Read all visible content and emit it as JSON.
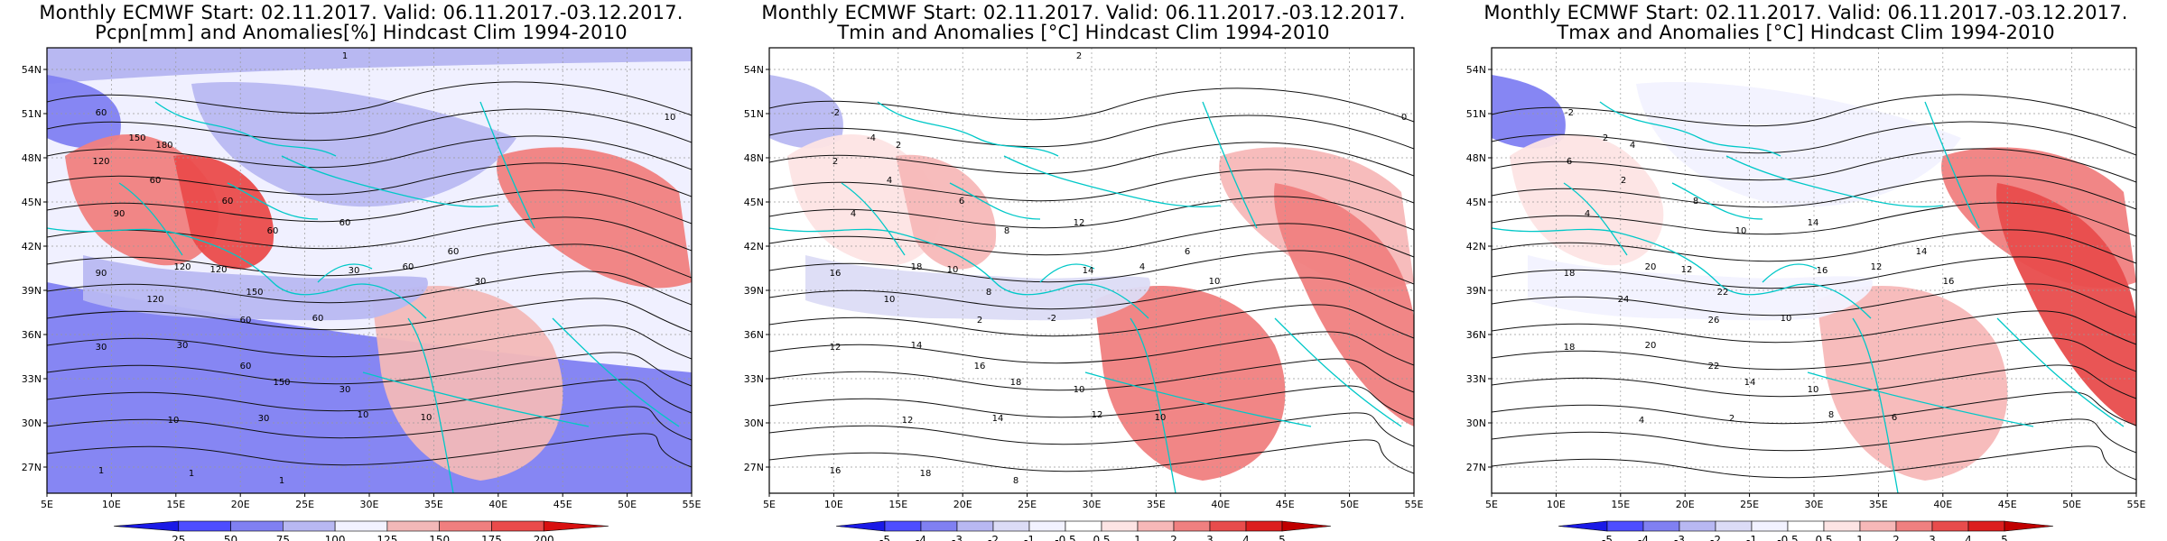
{
  "panels": [
    {
      "title1": "Monthly ECMWF Start: 02.11.2017. Valid: 06.11.2017.-03.12.2017.",
      "title2": "Pcpn[mm] and Anomalies[%] Hindcast Clim 1994-2010",
      "colorbar": {
        "labels": [
          "25",
          "50",
          "75",
          "100",
          "125",
          "150",
          "175",
          "200"
        ],
        "colors": [
          "#1a1ae6",
          "#4d4dff",
          "#8080f2",
          "#b8b8f2",
          "#f2f2ff",
          "#f2b8b8",
          "#f07f7f",
          "#ea4b4b",
          "#d81010"
        ]
      },
      "contour_labels": [
        "60",
        "150",
        "180",
        "120",
        "90",
        "60",
        "60",
        "60",
        "120",
        "60",
        "30",
        "90",
        "120",
        "150",
        "120",
        "60",
        "60",
        "60",
        "60",
        "30",
        "30",
        "30",
        "60",
        "150",
        "30",
        "10",
        "10",
        "10",
        "30",
        "1",
        "1",
        "1",
        "1",
        "10"
      ]
    },
    {
      "title1": "Monthly ECMWF Start: 02.11.2017. Valid: 06.11.2017.-03.12.2017.",
      "title2": "Tmin and Anomalies [°C] Hindcast Clim 1994-2010",
      "colorbar": {
        "labels": [
          "-5",
          "-4",
          "-3",
          "-2",
          "-1",
          "-0.5",
          "0.5",
          "1",
          "2",
          "3",
          "4",
          "5"
        ],
        "colors": [
          "#1a1ae6",
          "#4d4dff",
          "#8080f2",
          "#b8b8f2",
          "#dcdcf6",
          "#f2f2ff",
          "#ffffff",
          "#fde4e4",
          "#f7b8b8",
          "#f08080",
          "#e84c4c",
          "#dc1e1e",
          "#c00000"
        ]
      },
      "contour_labels": [
        "-2",
        "-4",
        "2",
        "2",
        "4",
        "4",
        "6",
        "8",
        "10",
        "12",
        "14",
        "16",
        "18",
        "8",
        "10",
        "2",
        "-2",
        "4",
        "6",
        "10",
        "12",
        "14",
        "16",
        "18",
        "10",
        "12",
        "10",
        "12",
        "14",
        "16",
        "18",
        "8",
        "2",
        "0"
      ]
    },
    {
      "title1": "Monthly ECMWF Start: 02.11.2017. Valid: 06.11.2017.-03.12.2017.",
      "title2": "Tmax and Anomalies [°C] Hindcast Clim 1994-2010",
      "colorbar": {
        "labels": [
          "-5",
          "-4",
          "-3",
          "-2",
          "-1",
          "-0.5",
          "0.5",
          "1",
          "2",
          "3",
          "4",
          "5"
        ],
        "colors": [
          "#1a1ae6",
          "#4d4dff",
          "#8080f2",
          "#b8b8f2",
          "#dcdcf6",
          "#f2f2ff",
          "#ffffff",
          "#fde4e4",
          "#f7b8b8",
          "#f08080",
          "#e84c4c",
          "#dc1e1e",
          "#c00000"
        ]
      },
      "contour_labels": [
        "-2",
        "2",
        "4",
        "6",
        "4",
        "2",
        "8",
        "10",
        "12",
        "14",
        "16",
        "18",
        "20",
        "22",
        "24",
        "26",
        "10",
        "12",
        "14",
        "16",
        "18",
        "20",
        "22",
        "14",
        "10",
        "8",
        "6",
        "4",
        "2"
      ]
    }
  ],
  "axes": {
    "lat_labels": [
      "54N",
      "51N",
      "48N",
      "45N",
      "42N",
      "39N",
      "36N",
      "33N",
      "30N",
      "27N"
    ],
    "lon_labels": [
      "5E",
      "10E",
      "15E",
      "20E",
      "25E",
      "30E",
      "35E",
      "40E",
      "45E",
      "50E",
      "55E"
    ]
  }
}
